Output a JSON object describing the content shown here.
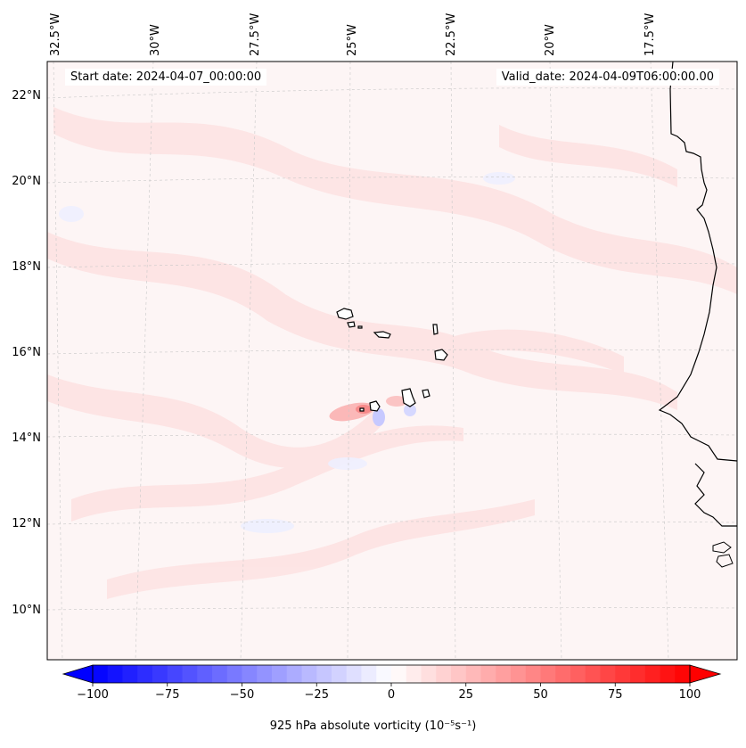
{
  "map": {
    "title_start": "Start date: 2024-04-07_00:00:00",
    "title_valid": "Valid_date: 2024-04-09T06:00:00.00",
    "lon_labels": [
      "32.5°W",
      "30°W",
      "27.5°W",
      "25°W",
      "22.5°W",
      "20°W",
      "17.5°W"
    ],
    "lat_labels": [
      "22°N",
      "20°N",
      "18°N",
      "16°N",
      "14°N",
      "12°N",
      "10°N"
    ],
    "features": [
      "Cape Verde islands",
      "West African coastline"
    ]
  },
  "colorbar": {
    "label": "925 hPa absolute vorticity (10⁻⁵s⁻¹)",
    "ticks": [
      "−100",
      "−75",
      "−50",
      "−25",
      "0",
      "25",
      "50",
      "75",
      "100"
    ],
    "min": -100,
    "max": 100,
    "step": 5,
    "colormap": "bwr",
    "extend": "both"
  },
  "colors": {
    "negative": "#0000ff",
    "positive": "#ff0000",
    "neutral": "#ffffff",
    "background": "#fdf5f5"
  }
}
